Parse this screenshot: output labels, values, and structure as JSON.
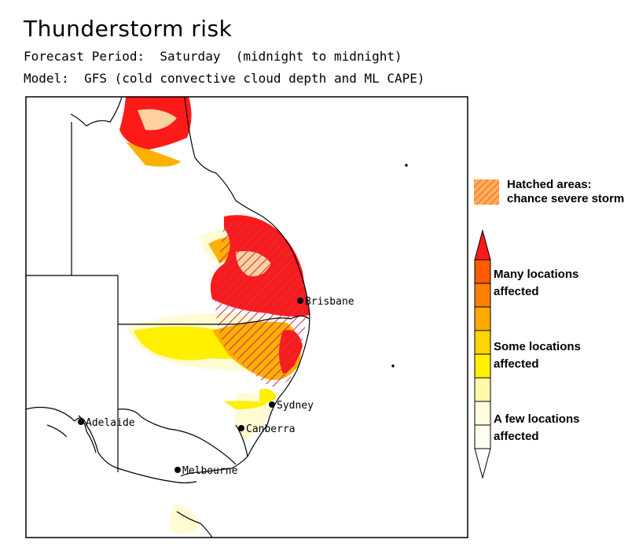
{
  "title": "Thunderstorm risk",
  "forecast_line": "Forecast Period:  Saturday  (midnight to midnight)",
  "model_line": "Model:  GFS (cold convective cloud depth and ML CAPE)",
  "cities": [
    {
      "id": "brisbane",
      "name": "Brisbane"
    },
    {
      "id": "sydney",
      "name": "Sydney"
    },
    {
      "id": "canberra",
      "name": "Canberra"
    },
    {
      "id": "adelaide",
      "name": "Adelaide"
    },
    {
      "id": "melbourne",
      "name": "Melbourne"
    }
  ],
  "legend": {
    "hatch_line1": "Hatched areas:",
    "hatch_line2": "chance severe storm",
    "many_line1": "Many locations",
    "many_line2": "affected",
    "some_line1": "Some locations",
    "some_line2": "affected",
    "few_line1": "A few locations",
    "few_line2": "affected",
    "colors": [
      "#fffde0",
      "#fffaa8",
      "#fff000",
      "#ffd400",
      "#ffaa00",
      "#ff7f00",
      "#ff5a00",
      "#ff1a1a"
    ],
    "hatch_color": "#ff4b8a",
    "hatch_fill": "#ffb347"
  }
}
